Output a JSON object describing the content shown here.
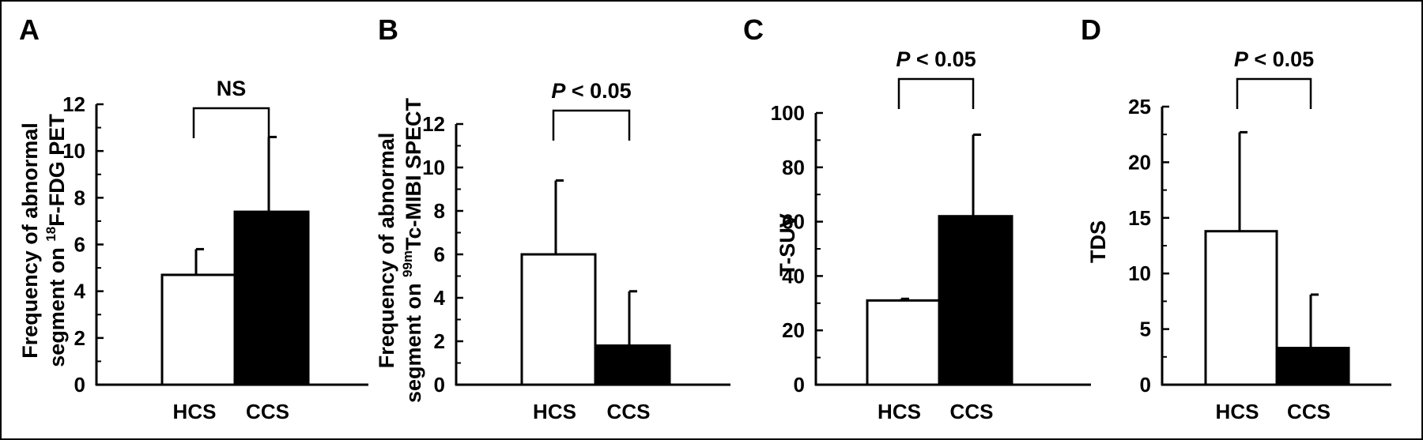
{
  "chart_data": [
    {
      "panel": "A",
      "type": "bar",
      "categories": [
        "HCS",
        "CCS"
      ],
      "values": [
        4.7,
        7.4
      ],
      "errors": [
        1.1,
        3.2
      ],
      "bar_colors": [
        "#ffffff",
        "#000000"
      ],
      "ylim": [
        0,
        12
      ],
      "yticks": [
        0,
        2,
        4,
        6,
        8,
        10,
        12
      ],
      "ylabel": {
        "line1": "Frequency of abnormal",
        "line2_pre": "segment on ",
        "line2_sup": "18",
        "line2_post": "F-FDG PET"
      },
      "significance": {
        "p": "",
        "text": "NS"
      }
    },
    {
      "panel": "B",
      "type": "bar",
      "categories": [
        "HCS",
        "CCS"
      ],
      "values": [
        6.0,
        1.8
      ],
      "errors": [
        3.4,
        2.5
      ],
      "bar_colors": [
        "#ffffff",
        "#000000"
      ],
      "ylim": [
        0,
        12
      ],
      "yticks": [
        0,
        2,
        4,
        6,
        8,
        10,
        12
      ],
      "ylabel": {
        "line1": "Frequency of abnormal",
        "line2_pre": "segment on ",
        "line2_sup": "99m",
        "line2_post": "Tc-MIBI SPECT"
      },
      "significance": {
        "p": "P",
        "text": " < 0.05"
      }
    },
    {
      "panel": "C",
      "type": "bar",
      "categories": [
        "HCS",
        "CCS"
      ],
      "values": [
        31,
        62
      ],
      "errors": [
        0.6,
        30
      ],
      "bar_colors": [
        "#ffffff",
        "#000000"
      ],
      "ylim": [
        0,
        100
      ],
      "yticks": [
        0,
        20,
        40,
        60,
        80,
        100
      ],
      "ylabel": {
        "line1": "T-SUV"
      },
      "significance": {
        "p": "P",
        "text": " < 0.05"
      }
    },
    {
      "panel": "D",
      "type": "bar",
      "categories": [
        "HCS",
        "CCS"
      ],
      "values": [
        13.8,
        3.3
      ],
      "errors": [
        8.9,
        4.8
      ],
      "bar_colors": [
        "#ffffff",
        "#000000"
      ],
      "ylim": [
        0,
        25
      ],
      "yticks": [
        0,
        5,
        10,
        15,
        20,
        25
      ],
      "ylabel": {
        "line1": "TDS"
      },
      "significance": {
        "p": "P",
        "text": " < 0.05"
      }
    }
  ]
}
